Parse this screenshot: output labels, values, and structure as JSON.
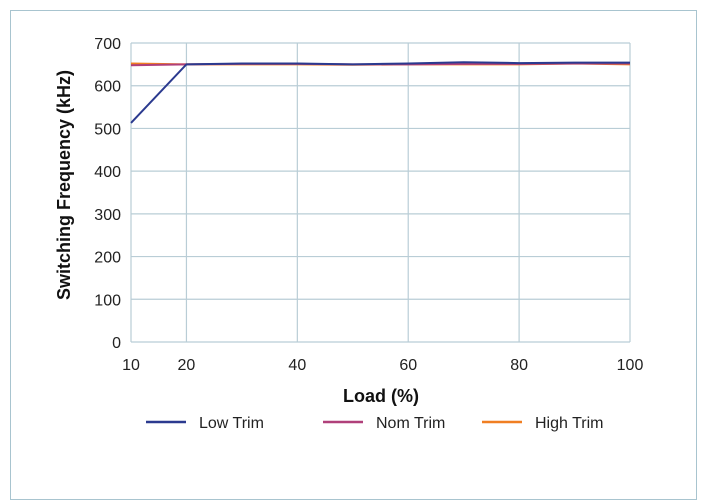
{
  "chart_data": {
    "type": "line",
    "xlabel": "Load (%)",
    "ylabel": "Switching Frequency (kHz)",
    "xlim": [
      10,
      100
    ],
    "ylim": [
      0,
      700
    ],
    "xticks": [
      10,
      20,
      40,
      60,
      80,
      100
    ],
    "yticks": [
      0,
      100,
      200,
      300,
      400,
      500,
      600,
      700
    ],
    "grid": true,
    "legend_position": "bottom",
    "series": [
      {
        "name": "Low Trim",
        "color": "#2b3a8f",
        "x": [
          10,
          20,
          30,
          40,
          50,
          60,
          70,
          80,
          90,
          100
        ],
        "y": [
          513,
          650,
          652,
          652,
          650,
          652,
          655,
          653,
          654,
          654
        ]
      },
      {
        "name": "Nom Trim",
        "color": "#b0407a",
        "x": [
          10,
          20,
          30,
          40,
          50,
          60,
          70,
          80,
          90,
          100
        ],
        "y": [
          648,
          650,
          651,
          651,
          650,
          650,
          651,
          651,
          652,
          652
        ]
      },
      {
        "name": "High Trim",
        "color": "#f07f22",
        "x": [
          10,
          20,
          30,
          40,
          50,
          60,
          70,
          80,
          90,
          100
        ],
        "y": [
          652,
          650,
          650,
          650,
          649,
          650,
          650,
          650,
          652,
          650
        ]
      }
    ]
  }
}
